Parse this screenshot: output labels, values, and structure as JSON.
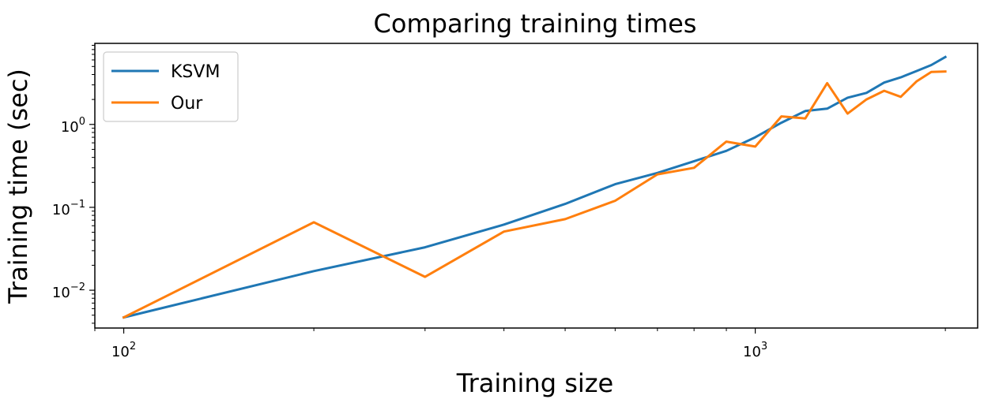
{
  "chart_data": {
    "type": "line",
    "title": "Comparing training times",
    "xlabel": "Training size",
    "ylabel": "Training time (sec)",
    "xscale": "log",
    "yscale": "log",
    "xlim": [
      90,
      2250
    ],
    "ylim": [
      0.0035,
      9.5
    ],
    "grid": false,
    "legend_position": "upper left",
    "x_ticks": [
      {
        "value": 100,
        "base": "10",
        "exp": "2"
      },
      {
        "value": 1000,
        "base": "10",
        "exp": "3"
      }
    ],
    "y_ticks": [
      {
        "value": 0.01,
        "base": "10",
        "exp": "−2"
      },
      {
        "value": 0.1,
        "base": "10",
        "exp": "−1"
      },
      {
        "value": 1,
        "base": "10",
        "exp": "0"
      }
    ],
    "series": [
      {
        "name": "KSVM",
        "color": "#1f77b4",
        "x": [
          100,
          200,
          300,
          400,
          500,
          600,
          700,
          800,
          900,
          1000,
          1100,
          1200,
          1300,
          1400,
          1500,
          1600,
          1700,
          1800,
          1900,
          2000
        ],
        "y": [
          0.0047,
          0.017,
          0.033,
          0.062,
          0.11,
          0.19,
          0.26,
          0.36,
          0.48,
          0.7,
          1.05,
          1.45,
          1.55,
          2.1,
          2.4,
          3.2,
          3.7,
          4.4,
          5.2,
          6.5
        ]
      },
      {
        "name": "Our",
        "color": "#ff7f0e",
        "x": [
          100,
          200,
          300,
          400,
          500,
          600,
          700,
          800,
          900,
          1000,
          1100,
          1200,
          1300,
          1400,
          1500,
          1600,
          1700,
          1800,
          1900,
          2000
        ],
        "y": [
          0.0047,
          0.066,
          0.0145,
          0.051,
          0.072,
          0.12,
          0.25,
          0.3,
          0.62,
          0.54,
          1.25,
          1.18,
          3.15,
          1.35,
          2.0,
          2.55,
          2.15,
          3.3,
          4.3,
          4.35
        ]
      }
    ]
  }
}
